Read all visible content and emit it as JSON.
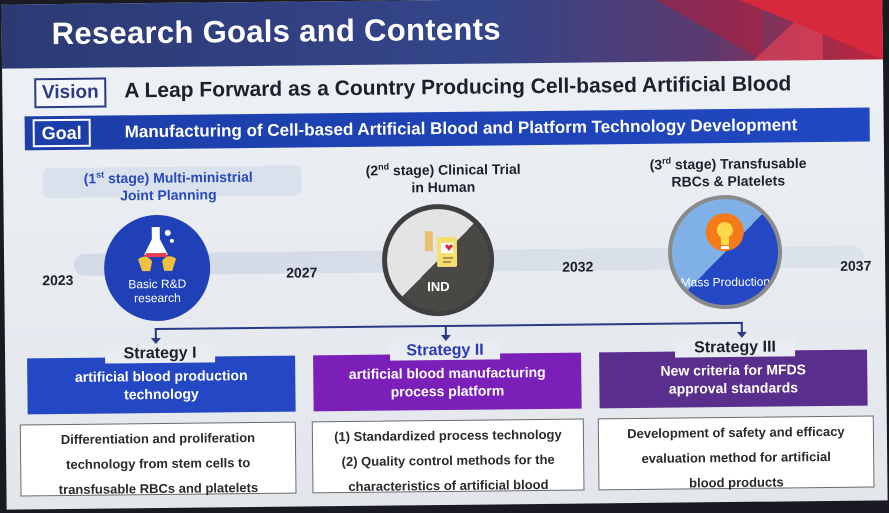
{
  "title": "Research Goals and Contents",
  "vision": {
    "label": "Vision",
    "text": "A Leap Forward as a Country Producing Cell-based Artificial Blood"
  },
  "goal": {
    "label": "Goal",
    "text": "Manufacturing of Cell-based Artificial Blood and Platform Technology Development"
  },
  "timeline": {
    "years": [
      "2023",
      "2027",
      "2032",
      "2037"
    ],
    "stages": [
      {
        "prefix": "(1",
        "sup": "st",
        "line1": " stage) Multi-ministrial",
        "line2": "Joint Planning",
        "circle_label_1": "Basic R&D",
        "circle_label_2": "research",
        "icon": "lab-flask-icon"
      },
      {
        "prefix": "(2",
        "sup": "nd",
        "line1": " stage) Clinical Trial",
        "line2": "in Human",
        "circle_label_1": "IND",
        "icon": "clinical-trial-icon"
      },
      {
        "prefix": "(3",
        "sup": "rd",
        "line1": " stage) Transfusable",
        "line2": "RBCs & Platelets",
        "circle_label_1": "Mass Production",
        "icon": "lightbulb-icon"
      }
    ]
  },
  "strategies": [
    {
      "head": "Strategy I",
      "box_line1": "artificial blood production",
      "box_line2": "technology",
      "desc": [
        "Differentiation and proliferation",
        "technology from stem cells to",
        "transfusable RBCs and platelets"
      ]
    },
    {
      "head": "Strategy II",
      "box_line1": "artificial blood manufacturing",
      "box_line2": "process platform",
      "desc": [
        "(1) Standardized process technology",
        "(2) Quality control methods for the",
        "characteristics of artificial blood"
      ]
    },
    {
      "head": "Strategy III",
      "box_line1": "New criteria for MFDS",
      "box_line2": "approval standards",
      "desc": [
        "Development of safety and efficacy",
        "evaluation method for artificial",
        "blood products"
      ]
    }
  ],
  "colors": {
    "header": "#2c3a74",
    "accent_red": "#d8283c",
    "strategy1": "#2447c4",
    "strategy2": "#7a1fb8",
    "strategy3": "#5a2e8c"
  }
}
